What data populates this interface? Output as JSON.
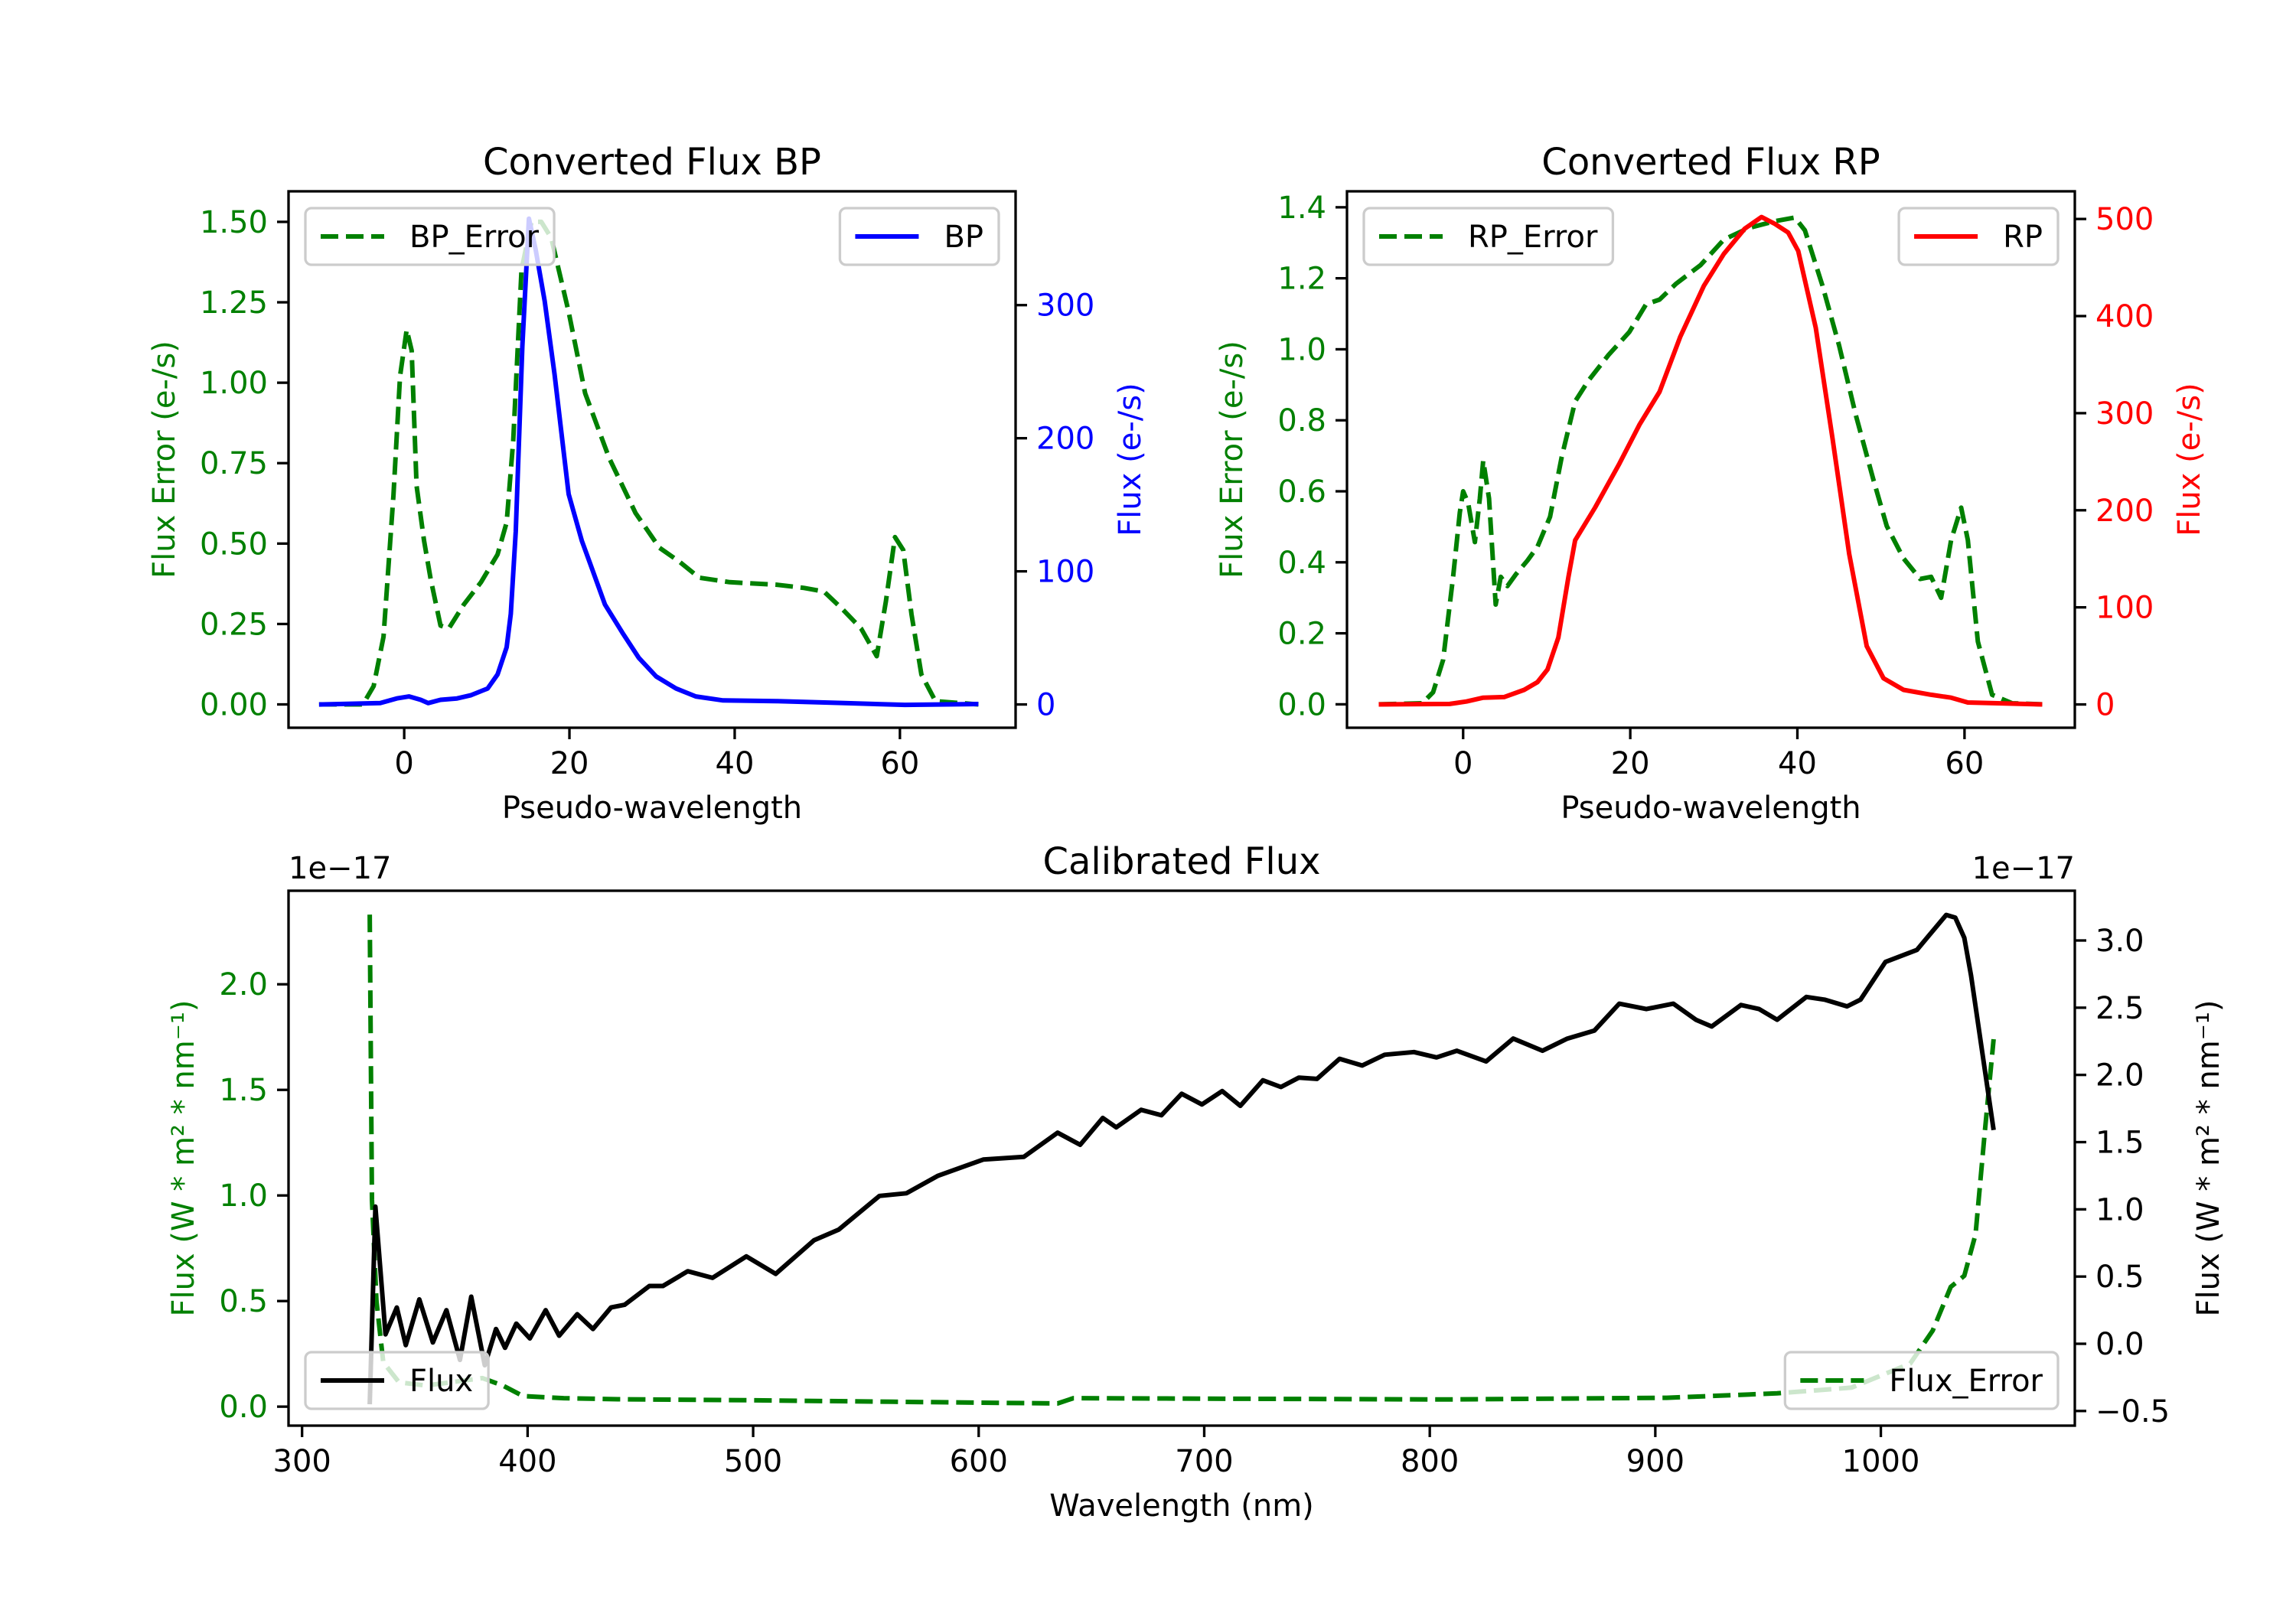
{
  "chart_data": [
    {
      "type": "line",
      "title": "Converted Flux BP",
      "xlabel": "Pseudo-wavelength",
      "ylabel_left": "Flux Error (e-/s)",
      "ylabel_right": "Flux (e-/s)",
      "left_color": "#008000",
      "right_color": "#0000ff",
      "xlim": [
        -14,
        74
      ],
      "ylim_left": [
        -0.0725,
        1.595
      ],
      "ylim_right": [
        -17.5,
        385.5
      ],
      "xticks": [
        0,
        20,
        40,
        60
      ],
      "xtick_labels": [
        "0",
        "20",
        "40",
        "60"
      ],
      "yticks_left": [
        0,
        0.25,
        0.5,
        0.75,
        1.0,
        1.25,
        1.5
      ],
      "ytick_labels_left": [
        "0.00",
        "0.25",
        "0.50",
        "0.75",
        "1.00",
        "1.25",
        "1.50"
      ],
      "yticks_right": [
        0,
        100,
        200,
        300
      ],
      "ytick_labels_right": [
        "0",
        "100",
        "200",
        "300"
      ],
      "grid": false,
      "series": [
        {
          "name": "BP_Error",
          "axis": "left",
          "color": "#008000",
          "style": "dashed",
          "legend": "upper left",
          "x": [
            -10.3,
            -5,
            -3.7,
            -2.5,
            -1.3,
            -0.5,
            0.3,
            0.9,
            1.5,
            2.4,
            3.2,
            4.4,
            5.4,
            7.2,
            9.3,
            11.3,
            12.4,
            13.2,
            14.2,
            15.4,
            16.6,
            17.8,
            19.9,
            21.9,
            24.8,
            28.0,
            30.9,
            33.3,
            35.7,
            39.4,
            45.1,
            48.4,
            50.8,
            52.9,
            55.3,
            57.2,
            58.3,
            59.4,
            60.4,
            61.4,
            62.6,
            64.3,
            69.5
          ],
          "y": [
            0,
            0,
            0.057,
            0.21,
            0.65,
            1.02,
            1.165,
            1.1,
            0.68,
            0.51,
            0.39,
            0.245,
            0.236,
            0.31,
            0.38,
            0.466,
            0.566,
            0.82,
            1.35,
            1.5,
            1.5,
            1.45,
            1.22,
            0.967,
            0.766,
            0.595,
            0.487,
            0.444,
            0.394,
            0.38,
            0.372,
            0.362,
            0.351,
            0.3,
            0.236,
            0.15,
            0.32,
            0.52,
            0.48,
            0.28,
            0.093,
            0.01,
            0
          ]
        },
        {
          "name": "BP",
          "axis": "right",
          "color": "#0000ff",
          "style": "solid",
          "legend": "upper right",
          "x": [
            -10.3,
            -2.9,
            -0.9,
            0.6,
            2,
            2.9,
            4.4,
            6.4,
            8.1,
            10.1,
            11.3,
            12.4,
            12.9,
            13.5,
            14.3,
            15.1,
            15.9,
            17.0,
            18.2,
            19.9,
            21.5,
            22.5,
            24.3,
            26.4,
            28.4,
            30.5,
            32.9,
            35.3,
            38.6,
            45.1,
            53.3,
            60.6,
            69.5
          ],
          "y": [
            0,
            1,
            4.5,
            6,
            3.5,
            1,
            3.5,
            4.5,
            7,
            12,
            22.5,
            43,
            68,
            130,
            269,
            365,
            342,
            303,
            248,
            158,
            123,
            106,
            75,
            54,
            35,
            21,
            12,
            6,
            3,
            2.5,
            1,
            -0.3,
            0.3
          ]
        }
      ]
    },
    {
      "type": "line",
      "title": "Converted Flux RP",
      "xlabel": "Pseudo-wavelength",
      "ylabel_left": "Flux Error (e-/s)",
      "ylabel_right": "Flux (e-/s)",
      "left_color": "#008000",
      "right_color": "#ff0000",
      "xlim": [
        -13.9,
        73.2
      ],
      "ylim_left": [
        -0.066,
        1.445
      ],
      "ylim_right": [
        -24,
        528.5
      ],
      "xticks": [
        0,
        20,
        40,
        60
      ],
      "xtick_labels": [
        "0",
        "20",
        "40",
        "60"
      ],
      "yticks_left": [
        0,
        0.2,
        0.4,
        0.6,
        0.8,
        1.0,
        1.2,
        1.4
      ],
      "ytick_labels_left": [
        "0.0",
        "0.2",
        "0.4",
        "0.6",
        "0.8",
        "1.0",
        "1.2",
        "1.4"
      ],
      "yticks_right": [
        0,
        100,
        200,
        300,
        400,
        500
      ],
      "ytick_labels_right": [
        "0",
        "100",
        "200",
        "300",
        "400",
        "500"
      ],
      "grid": false,
      "series": [
        {
          "name": "RP_Error",
          "axis": "left",
          "color": "#008000",
          "style": "dashed",
          "legend": "upper left",
          "x": [
            -10.1,
            -4.9,
            -3.6,
            -2.4,
            -1.2,
            -0.4,
            0,
            0.6,
            1.4,
            2.0,
            2.4,
            3.1,
            3.9,
            4.5,
            5.3,
            6.3,
            7.7,
            8.9,
            10.4,
            11.8,
            13.4,
            15.0,
            17.4,
            19.9,
            21.9,
            23.5,
            25.5,
            28.4,
            31.2,
            34.1,
            37.3,
            39.7,
            40.9,
            43.0,
            45.0,
            47.0,
            49.1,
            50.7,
            52.7,
            54.7,
            56.0,
            57.2,
            58.4,
            59.6,
            60.4,
            61.6,
            63.3,
            65.7,
            69.3
          ],
          "y": [
            0,
            0.003,
            0.034,
            0.125,
            0.36,
            0.54,
            0.6,
            0.567,
            0.457,
            0.58,
            0.687,
            0.58,
            0.281,
            0.359,
            0.333,
            0.366,
            0.405,
            0.444,
            0.528,
            0.697,
            0.853,
            0.912,
            0.984,
            1.049,
            1.127,
            1.14,
            1.185,
            1.237,
            1.309,
            1.341,
            1.361,
            1.371,
            1.335,
            1.179,
            1.01,
            0.814,
            0.632,
            0.502,
            0.411,
            0.353,
            0.359,
            0.3,
            0.463,
            0.554,
            0.463,
            0.177,
            0.027,
            0.003,
            0
          ]
        },
        {
          "name": "RP",
          "axis": "right",
          "color": "#ff0000",
          "style": "solid",
          "legend": "upper right",
          "x": [
            -10.1,
            -1.6,
            0.4,
            2.4,
            4.9,
            7.3,
            8.9,
            10.1,
            11.4,
            12.6,
            13.4,
            15.8,
            18.7,
            21.1,
            23.5,
            26.0,
            28.8,
            31.2,
            33.7,
            35.7,
            37.3,
            38.9,
            40.1,
            42.2,
            44.2,
            46.2,
            48.3,
            50.3,
            52.7,
            56.0,
            58.4,
            60.4,
            69.3
          ],
          "y": [
            0,
            0.5,
            3,
            7,
            7.6,
            15,
            23,
            36,
            69,
            131,
            169,
            203,
            248,
            288,
            322,
            379,
            431,
            464,
            490,
            502,
            495,
            486,
            467,
            388,
            274,
            155,
            60,
            27,
            15,
            10,
            7,
            2,
            0
          ]
        }
      ]
    },
    {
      "type": "line",
      "title": "Calibrated Flux",
      "xlabel": "Wavelength (nm)",
      "ylabel_left": "Flux (W * m² * nm⁻¹)",
      "ylabel_right": "Flux (W * m² * nm⁻¹)",
      "left_color": "#008000",
      "right_color": "#000000",
      "offset_text_left": "1e−17",
      "offset_text_right": "1e−17",
      "xlim": [
        294,
        1086
      ],
      "ylim_left": [
        -0.09,
        2.443
      ],
      "ylim_right": [
        -0.609,
        3.37
      ],
      "xticks": [
        300,
        400,
        500,
        600,
        700,
        800,
        900,
        1000
      ],
      "xtick_labels": [
        "300",
        "400",
        "500",
        "600",
        "700",
        "800",
        "900",
        "1000"
      ],
      "yticks_left": [
        0,
        0.5,
        1.0,
        1.5,
        2.0
      ],
      "ytick_labels_left": [
        "0.0",
        "0.5",
        "1.0",
        "1.5",
        "2.0"
      ],
      "yticks_right": [
        -0.5,
        0,
        0.5,
        1.0,
        1.5,
        2.0,
        2.5,
        3.0
      ],
      "ytick_labels_right": [
        "−0.5",
        "0.0",
        "0.5",
        "1.0",
        "1.5",
        "2.0",
        "2.5",
        "3.0"
      ],
      "grid": false,
      "series": [
        {
          "name": "Flux_Error",
          "axis": "left",
          "color": "#008000",
          "style": "dashed",
          "legend": "lower right",
          "x": [
            330,
            331,
            333,
            336,
            343,
            355,
            380,
            389,
            398,
            416,
            440,
            501,
            562,
            635,
            642,
            698,
            808,
            905,
            954,
            987,
            1013,
            1023,
            1031,
            1037,
            1042,
            1046,
            1050
          ],
          "y": [
            2.33,
            0.98,
            0.5,
            0.21,
            0.115,
            0.1,
            0.135,
            0.1,
            0.05,
            0.04,
            0.035,
            0.03,
            0.023,
            0.015,
            0.04,
            0.038,
            0.034,
            0.042,
            0.063,
            0.09,
            0.204,
            0.36,
            0.567,
            0.62,
            0.816,
            1.29,
            1.74
          ]
        },
        {
          "name": "Flux",
          "axis": "right",
          "color": "#000000",
          "style": "solid",
          "legend": "lower left",
          "x": [
            330,
            332.5,
            337,
            342,
            346,
            352,
            358,
            364,
            370,
            375,
            381,
            386,
            390,
            395,
            401,
            408,
            414,
            422,
            429,
            437,
            443,
            454,
            460,
            471,
            482,
            497,
            510,
            527,
            538,
            556,
            568,
            582,
            602,
            620,
            635,
            645,
            655,
            661,
            672,
            681,
            690,
            699,
            708,
            716,
            726,
            734,
            742,
            750,
            760,
            770,
            780,
            793,
            803,
            812,
            825,
            837,
            850,
            861,
            873,
            884,
            896,
            908,
            918,
            925,
            938,
            946,
            954,
            967,
            975,
            985,
            991,
            1002,
            1016,
            1021,
            1029,
            1033,
            1037,
            1040,
            1050
          ],
          "y": [
            -0.45,
            1.02,
            0.07,
            0.27,
            -0.01,
            0.33,
            0.01,
            0.25,
            -0.12,
            0.35,
            -0.16,
            0.11,
            -0.03,
            0.15,
            0.04,
            0.25,
            0.06,
            0.22,
            0.11,
            0.27,
            0.29,
            0.43,
            0.43,
            0.54,
            0.49,
            0.65,
            0.52,
            0.77,
            0.85,
            1.1,
            1.12,
            1.25,
            1.37,
            1.39,
            1.57,
            1.48,
            1.68,
            1.61,
            1.74,
            1.7,
            1.86,
            1.78,
            1.88,
            1.77,
            1.96,
            1.91,
            1.98,
            1.97,
            2.12,
            2.07,
            2.15,
            2.17,
            2.13,
            2.18,
            2.1,
            2.27,
            2.18,
            2.27,
            2.33,
            2.53,
            2.49,
            2.53,
            2.41,
            2.36,
            2.52,
            2.49,
            2.41,
            2.58,
            2.56,
            2.51,
            2.56,
            2.84,
            2.93,
            3.03,
            3.19,
            3.17,
            3.02,
            2.74,
            1.59
          ]
        }
      ]
    }
  ]
}
